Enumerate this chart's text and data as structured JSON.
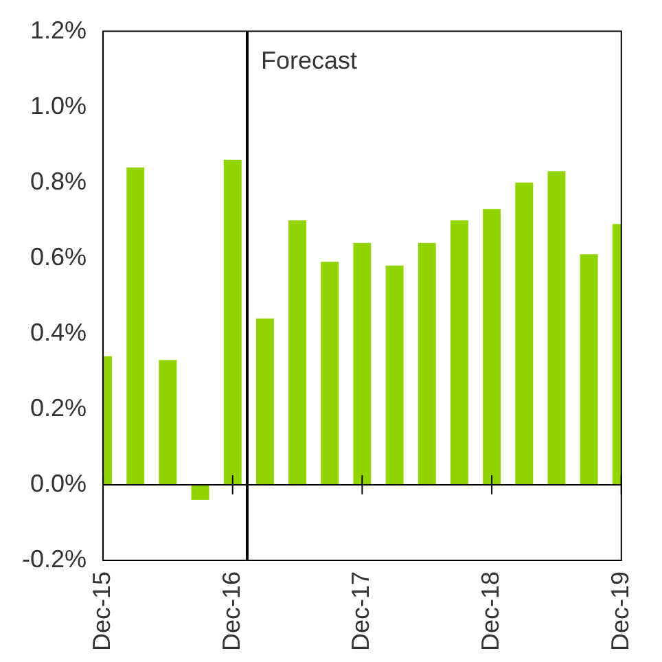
{
  "chart_data": {
    "type": "bar",
    "categories": [
      "Dec-15",
      null,
      null,
      null,
      "Dec-16",
      null,
      null,
      null,
      "Dec-17",
      null,
      null,
      null,
      "Dec-18",
      null,
      null,
      null,
      "Dec-19"
    ],
    "values": [
      0.34,
      0.84,
      0.33,
      -0.04,
      0.86,
      0.44,
      0.7,
      0.59,
      0.64,
      0.58,
      0.64,
      0.7,
      0.73,
      0.8,
      0.83,
      0.61,
      0.69
    ],
    "color": "#92d400",
    "ylim": [
      -0.2,
      1.2
    ],
    "yticks": [
      {
        "value": -0.2,
        "label": "-0.2%"
      },
      {
        "value": 0,
        "label": "0.0%"
      },
      {
        "value": 0.2,
        "label": "0.2%"
      },
      {
        "value": 0.4,
        "label": "0.4%"
      },
      {
        "value": 0.6,
        "label": "0.6%"
      },
      {
        "value": 0.8,
        "label": "0.8%"
      },
      {
        "value": 1.0,
        "label": "1.0%"
      },
      {
        "value": 1.2,
        "label": "1.2%"
      }
    ],
    "ref_lines": [
      {
        "axis": "x",
        "value": "Dec-16",
        "label": "Forecast",
        "color": "#000000"
      }
    ],
    "grid": false,
    "legend": false
  }
}
